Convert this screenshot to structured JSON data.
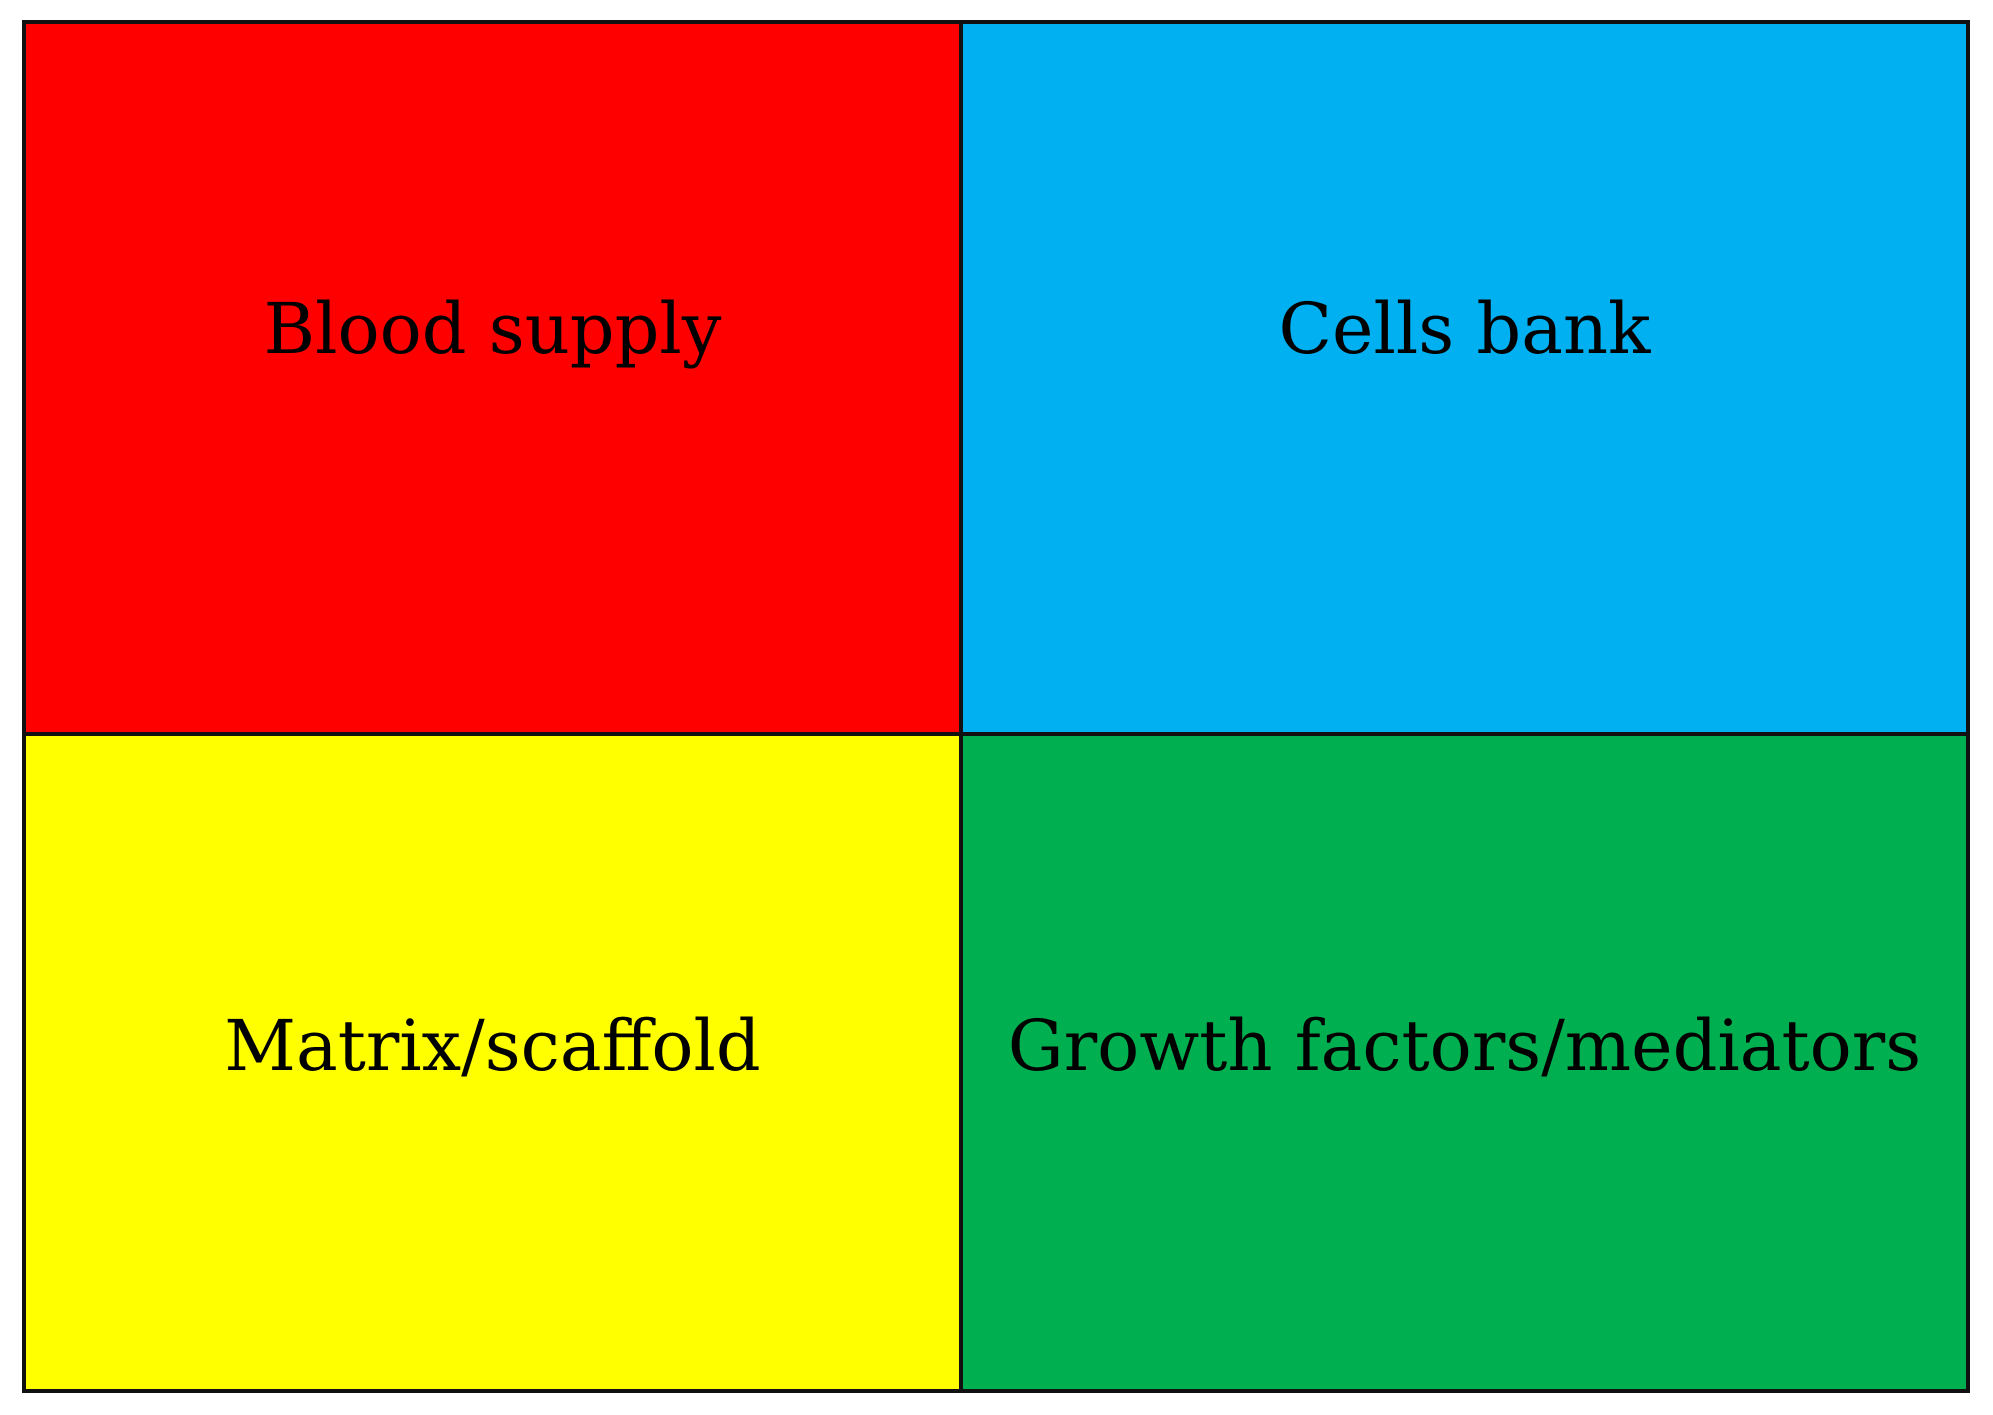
{
  "quadrants": [
    {
      "label": "Blood supply",
      "color": "#ff0000"
    },
    {
      "label": "Cells bank",
      "color": "#00b0f0"
    },
    {
      "label": "Matrix/scaffold",
      "color": "#ffff00"
    },
    {
      "label": "Growth factors/mediators",
      "color": "#00b050"
    }
  ]
}
